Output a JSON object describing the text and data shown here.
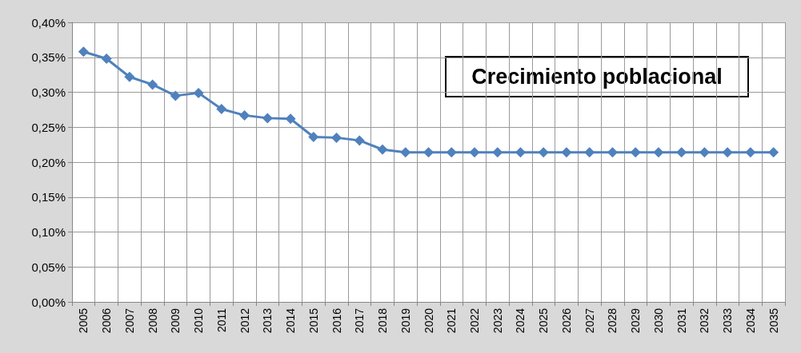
{
  "chart_data": {
    "type": "line",
    "categories": [
      "2005",
      "2006",
      "2007",
      "2008",
      "2009",
      "2010",
      "2011",
      "2012",
      "2013",
      "2014",
      "2015",
      "2016",
      "2017",
      "2018",
      "2019",
      "2020",
      "2021",
      "2022",
      "2023",
      "2024",
      "2025",
      "2026",
      "2027",
      "2028",
      "2029",
      "2030",
      "2031",
      "2032",
      "2033",
      "2034",
      "2035"
    ],
    "series": [
      {
        "color": "#4f81bd",
        "values": [
          0.358,
          0.348,
          0.322,
          0.311,
          0.295,
          0.299,
          0.276,
          0.267,
          0.263,
          0.262,
          0.236,
          0.235,
          0.231,
          0.218,
          0.214,
          0.214,
          0.214,
          0.214,
          0.214,
          0.214,
          0.214,
          0.214,
          0.214,
          0.214,
          0.214,
          0.214,
          0.214,
          0.214,
          0.214,
          0.214,
          0.214
        ]
      }
    ],
    "ylim": [
      0,
      0.4
    ],
    "yticks": [
      {
        "value": 0,
        "label": "0,00%"
      },
      {
        "value": 0.05,
        "label": "0,05%"
      },
      {
        "value": 0.1,
        "label": "0,10%"
      },
      {
        "value": 0.15,
        "label": "0,15%"
      },
      {
        "value": 0.2,
        "label": "0,20%"
      },
      {
        "value": 0.25,
        "label": "0,25%"
      },
      {
        "value": 0.3,
        "label": "0,30%"
      },
      {
        "value": 0.35,
        "label": "0,35%"
      },
      {
        "value": 0.4,
        "label": "0,40%"
      }
    ],
    "annotations": [
      "Crecimiento poblacional"
    ],
    "grid": true,
    "marker": "diamond",
    "line_style": "solid"
  }
}
